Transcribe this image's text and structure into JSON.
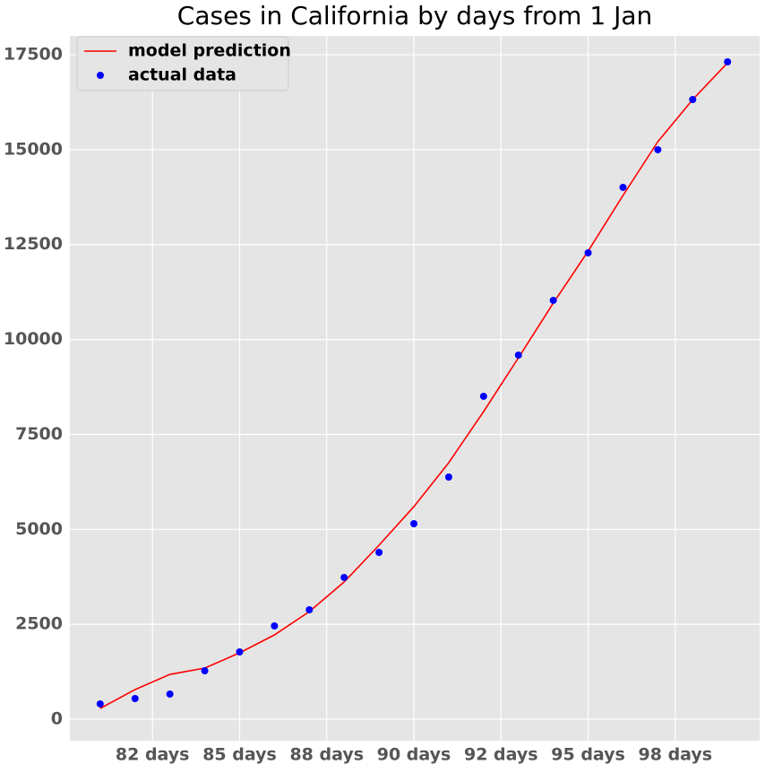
{
  "chart_data": {
    "type": "line",
    "title": "Cases in California by days from 1 Jan",
    "x": [
      81,
      82,
      83,
      84,
      85,
      86,
      87,
      88,
      89,
      90,
      91,
      92,
      93,
      94,
      95,
      96,
      97,
      98,
      99
    ],
    "series": [
      {
        "name": "model prediction",
        "type": "line",
        "color": "#ff0000",
        "values": [
          283,
          780,
          1180,
          1346,
          1748,
          2220,
          2834,
          3614,
          4582,
          5598,
          6755,
          8101,
          9518,
          10959,
          12329,
          13793,
          15210,
          16320,
          17288
        ]
      },
      {
        "name": "actual data",
        "type": "scatter",
        "color": "#0000ff",
        "values": [
          402,
          543,
          661,
          1275,
          1771,
          2456,
          2881,
          3732,
          4393,
          5149,
          6377,
          8503,
          9589,
          11030,
          12282,
          14006,
          14998,
          16320,
          17312
        ]
      }
    ],
    "xlim": [
      80.13,
      99.92
    ],
    "ylim": [
      -567,
      17997
    ],
    "xticks": [
      {
        "value": 82.5,
        "label": "82 days"
      },
      {
        "value": 85,
        "label": "85 days"
      },
      {
        "value": 87.5,
        "label": "88 days"
      },
      {
        "value": 90,
        "label": "90 days"
      },
      {
        "value": 92.5,
        "label": "92 days"
      },
      {
        "value": 95,
        "label": "95 days"
      },
      {
        "value": 97.5,
        "label": "98 days"
      }
    ],
    "yticks": [
      0,
      2500,
      5000,
      7500,
      10000,
      12500,
      15000,
      17500
    ],
    "grid": true,
    "legend": "upper-left"
  }
}
